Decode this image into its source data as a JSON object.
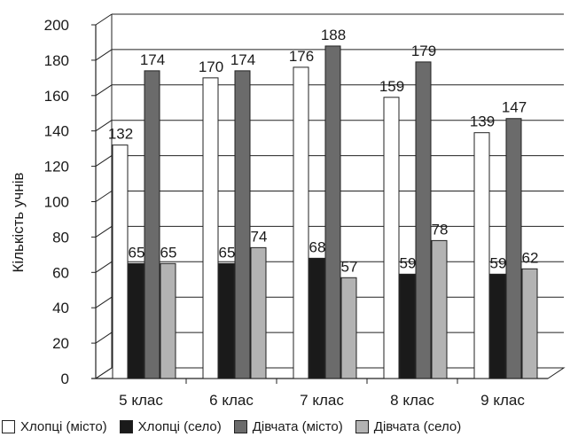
{
  "chart_data": {
    "type": "bar",
    "title": "",
    "xlabel": "",
    "ylabel": "Кількість учнів",
    "ylim": [
      0,
      200
    ],
    "yticks": [
      0,
      20,
      40,
      60,
      80,
      100,
      120,
      140,
      160,
      180,
      200
    ],
    "grid": true,
    "legend": "bottom",
    "categories": [
      "5 клас",
      "6 клас",
      "7 клас",
      "8 клас",
      "9 клас"
    ],
    "series": [
      {
        "name": "Хлопці (місто)",
        "color": "#ffffff",
        "values": [
          132,
          170,
          176,
          159,
          139
        ]
      },
      {
        "name": "Хлопці (село)",
        "color": "#1a1a1a",
        "values": [
          65,
          65,
          68,
          59,
          59
        ]
      },
      {
        "name": "Дівчата (місто)",
        "color": "#6b6b6b",
        "values": [
          174,
          174,
          188,
          179,
          147
        ]
      },
      {
        "name": "Дівчата (село)",
        "color": "#b3b3b3",
        "values": [
          65,
          74,
          57,
          78,
          62
        ]
      }
    ]
  }
}
